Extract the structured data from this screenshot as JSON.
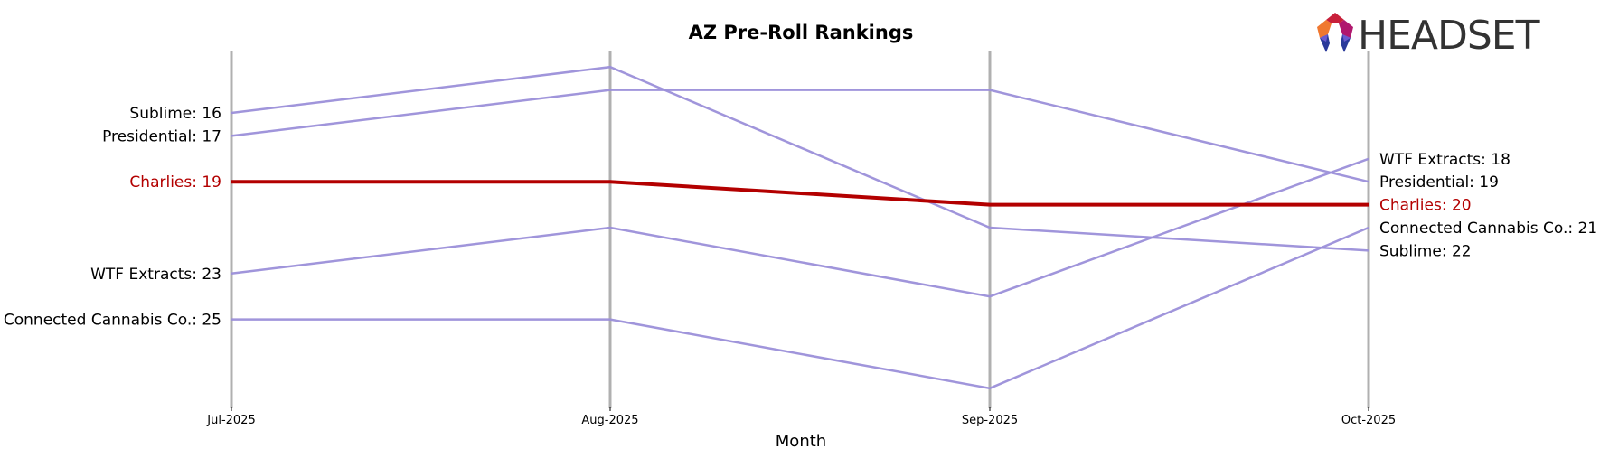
{
  "chart_data": {
    "type": "line",
    "title": "AZ Pre-Roll Rankings",
    "xlabel": "Month",
    "ylabel": "",
    "y_inverted": true,
    "grid": "vertical lines at each month",
    "categories": [
      "Jul-2025",
      "Aug-2025",
      "Sep-2025",
      "Oct-2025"
    ],
    "highlight_brand": "Charlies",
    "colors": {
      "highlight": "#b30000",
      "other": "#9b8fd9",
      "gridline": "#b0b0b0"
    },
    "series": [
      {
        "name": "Sublime",
        "values": [
          16,
          14,
          21,
          22
        ],
        "highlight": false
      },
      {
        "name": "Presidential",
        "values": [
          17,
          15,
          15,
          19
        ],
        "highlight": false
      },
      {
        "name": "Charlies",
        "values": [
          19,
          19,
          20,
          20
        ],
        "highlight": true
      },
      {
        "name": "WTF Extracts",
        "values": [
          23,
          21,
          24,
          18
        ],
        "highlight": false
      },
      {
        "name": "Connected Cannabis Co.",
        "values": [
          25,
          25,
          28,
          21
        ],
        "highlight": false
      }
    ],
    "left_labels": [
      {
        "text": "Sublime: 16",
        "rank": 16,
        "highlight": false
      },
      {
        "text": "Presidential: 17",
        "rank": 17,
        "highlight": false
      },
      {
        "text": "Charlies: 19",
        "rank": 19,
        "highlight": true
      },
      {
        "text": "WTF Extracts: 23",
        "rank": 23,
        "highlight": false
      },
      {
        "text": "Connected Cannabis Co.: 25",
        "rank": 25,
        "highlight": false
      }
    ],
    "right_labels": [
      {
        "text": "WTF Extracts: 18",
        "rank": 18,
        "highlight": false
      },
      {
        "text": "Presidential: 19",
        "rank": 19,
        "highlight": false
      },
      {
        "text": "Charlies: 20",
        "rank": 20,
        "highlight": true
      },
      {
        "text": "Connected Cannabis Co.: 21",
        "rank": 21,
        "highlight": false
      },
      {
        "text": "Sublime: 22",
        "rank": 22,
        "highlight": false
      }
    ]
  },
  "logo": {
    "text": "HEADSET"
  }
}
